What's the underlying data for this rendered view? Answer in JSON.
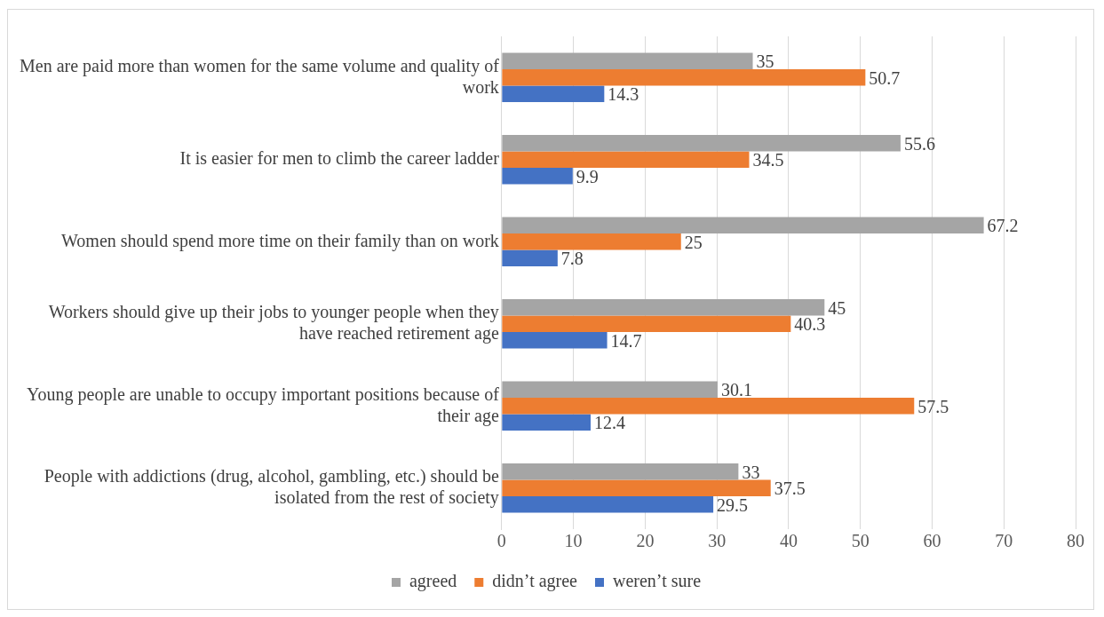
{
  "chart_data": {
    "type": "bar",
    "orientation": "horizontal",
    "categories": [
      "Men are paid more than women for the same volume and quality of work",
      "It is easier for men to climb the career ladder",
      "Women should spend more time on their family than on work",
      "Workers should give up their jobs to younger people when they have reached retirement age",
      "Young people are unable to occupy important positions because of their age",
      "People with addictions (drug, alcohol, gambling, etc.) should be isolated from the rest of society"
    ],
    "series": [
      {
        "name": "agreed",
        "color": "#a5a5a5",
        "values": [
          35,
          55.6,
          67.2,
          45,
          30.1,
          33
        ]
      },
      {
        "name": "didn’t agree",
        "color": "#ed7d31",
        "values": [
          50.7,
          34.5,
          25,
          40.3,
          57.5,
          37.5
        ]
      },
      {
        "name": "weren’t sure",
        "color": "#4472c4",
        "values": [
          14.3,
          9.9,
          7.8,
          14.7,
          12.4,
          29.5
        ]
      }
    ],
    "xlim": [
      0,
      80
    ],
    "xticks": [
      0,
      10,
      20,
      30,
      40,
      50,
      60,
      70,
      80
    ],
    "grid": "x",
    "legend": "bottom",
    "data_labels": true
  }
}
